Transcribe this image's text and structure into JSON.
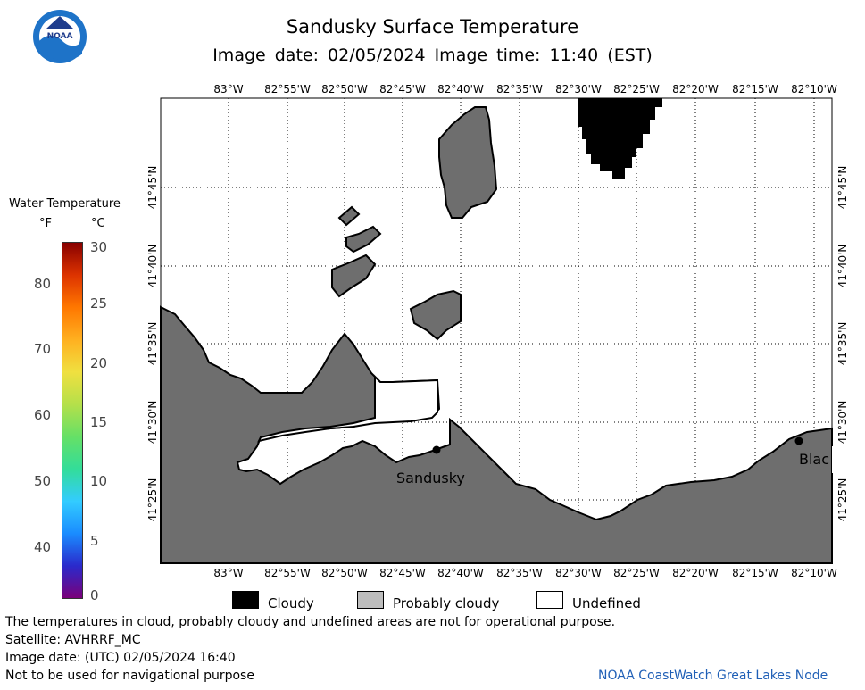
{
  "header": {
    "title": "Sandusky Surface Temperature",
    "subtitle": "Image date: 02/05/2024     Image time: 11:40 (EST)",
    "logo_text": "NOAA"
  },
  "legend": {
    "title": "Water Temperature",
    "unit_f": "°F",
    "unit_c": "°C",
    "fahrenheit_ticks": [
      "80",
      "70",
      "60",
      "50",
      "40"
    ],
    "celsius_ticks": [
      "30",
      "25",
      "20",
      "15",
      "10",
      "5",
      "0"
    ],
    "colormap": [
      "#7a007a",
      "#2a2acc",
      "#1a8cff",
      "#33ccff",
      "#33dd99",
      "#66e066",
      "#b5e04a",
      "#f0e040",
      "#ffb020",
      "#ff7700",
      "#dd3300",
      "#880000"
    ]
  },
  "map": {
    "top_lon_labels": [
      "83°W",
      "82°55'W",
      "82°50'W",
      "82°45'W",
      "82°40'W",
      "82°35'W",
      "82°30'W",
      "82°25'W",
      "82°20'W",
      "82°15'W",
      "82°10'W"
    ],
    "bottom_lon_labels": [
      "83°W",
      "82°55'W",
      "82°50'W",
      "82°45'W",
      "82°40'W",
      "82°35'W",
      "82°30'W",
      "82°25'W",
      "82°20'W",
      "82°15'W",
      "82°10'W"
    ],
    "lat_labels": [
      "41°45'N",
      "41°40'N",
      "41°35'N",
      "41°30'N",
      "41°25'N"
    ],
    "places": [
      "Sandusky",
      "Blac"
    ],
    "colors": {
      "land": "#6e6e6e",
      "cloud": "#000000",
      "water_undefined": "#ffffff",
      "grid": "#000000"
    }
  },
  "key": {
    "items": [
      {
        "label": "Cloudy",
        "color": "#000000"
      },
      {
        "label": "Probably cloudy",
        "color": "#bdbdbd"
      },
      {
        "label": "Undefined",
        "color": "#ffffff"
      }
    ]
  },
  "footer": {
    "lines": [
      "The temperatures in cloud, probably cloudy and undefined areas are not for operational purpose.",
      "Satellite: AVHRRF_MC",
      "Image date: (UTC) 02/05/2024  16:40",
      "Not to be used for navigational purpose"
    ],
    "credit": "NOAA CoastWatch Great Lakes Node"
  }
}
